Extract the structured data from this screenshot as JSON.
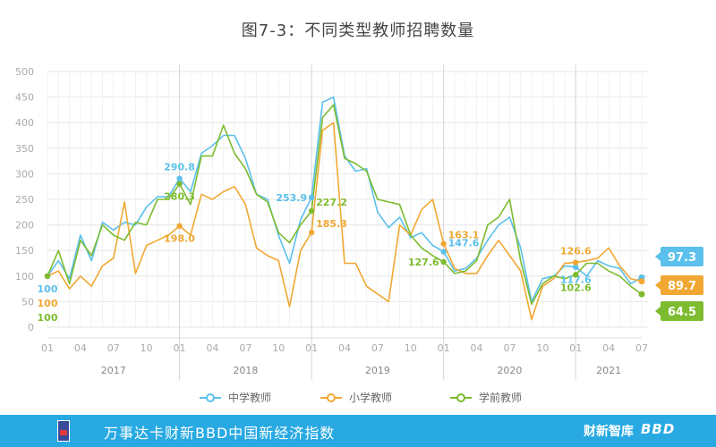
{
  "title": "图7-3：不同类型教师招聘数量",
  "footer": {
    "text": "万事达卡财新BBD中国新经济指数",
    "brand1": "财新智库",
    "brand2": "BBD"
  },
  "colors": {
    "primary": "#5bc0eb",
    "elementary": "#f0a833",
    "preschool": "#7dbb2f",
    "grid": "#e6e6e6",
    "axis_text": "#aaaaaa",
    "footer_bg": "#28a9e2"
  },
  "chart_data": {
    "type": "line",
    "title": "图7-3：不同类型教师招聘数量",
    "ylim": [
      0,
      500
    ],
    "yticks": [
      0,
      50,
      100,
      150,
      200,
      250,
      300,
      350,
      400,
      450,
      500
    ],
    "xticks": [
      {
        "i": 0,
        "label": "01"
      },
      {
        "i": 3,
        "label": "04"
      },
      {
        "i": 6,
        "label": "07"
      },
      {
        "i": 9,
        "label": "10"
      },
      {
        "i": 12,
        "label": "01"
      },
      {
        "i": 15,
        "label": "04"
      },
      {
        "i": 18,
        "label": "07"
      },
      {
        "i": 21,
        "label": "10"
      },
      {
        "i": 24,
        "label": "01"
      },
      {
        "i": 27,
        "label": "04"
      },
      {
        "i": 30,
        "label": "07"
      },
      {
        "i": 33,
        "label": "10"
      },
      {
        "i": 36,
        "label": "01"
      },
      {
        "i": 39,
        "label": "04"
      },
      {
        "i": 42,
        "label": "07"
      },
      {
        "i": 45,
        "label": "10"
      },
      {
        "i": 48,
        "label": "01"
      },
      {
        "i": 51,
        "label": "04"
      },
      {
        "i": 54,
        "label": "07"
      }
    ],
    "years": [
      {
        "label": "2017",
        "center": 6
      },
      {
        "label": "2018",
        "center": 18
      },
      {
        "label": "2019",
        "center": 30
      },
      {
        "label": "2020",
        "center": 42
      },
      {
        "label": "2021",
        "center": 51
      }
    ],
    "year_dividers": [
      12,
      24,
      36,
      48
    ],
    "grid": true,
    "legend_position": "bottom",
    "series": [
      {
        "name": "中学教师",
        "color": "#5bc0eb",
        "values": [
          100,
          130,
          95,
          180,
          130,
          205,
          190,
          205,
          200,
          235,
          255,
          255,
          290.8,
          265,
          340,
          355,
          375,
          375,
          330,
          260,
          250,
          180,
          125,
          210,
          253.9,
          440,
          450,
          335,
          305,
          310,
          225,
          195,
          215,
          175,
          185,
          160,
          147.6,
          110,
          115,
          135,
          170,
          200,
          215,
          155,
          50,
          95,
          100,
          120,
          117.6,
          100,
          130,
          120,
          115,
          85,
          97.3
        ],
        "labels": [
          {
            "i": 0,
            "text": "100",
            "pos": "below"
          },
          {
            "i": 12,
            "text": "290.8",
            "pos": "above"
          },
          {
            "i": 24,
            "text": "253.9",
            "pos": "left"
          },
          {
            "i": 36,
            "text": "147.6",
            "pos": "right"
          },
          {
            "i": 48,
            "text": "117.6",
            "pos": "below"
          }
        ]
      },
      {
        "name": "小学教师",
        "color": "#f0a833",
        "values": [
          100,
          110,
          75,
          100,
          80,
          120,
          135,
          245,
          105,
          160,
          170,
          180,
          198,
          180,
          260,
          250,
          265,
          275,
          240,
          155,
          140,
          130,
          40,
          150,
          185.3,
          385,
          400,
          125,
          125,
          80,
          65,
          50,
          200,
          180,
          230,
          250,
          163.1,
          115,
          105,
          105,
          140,
          170,
          140,
          110,
          15,
          80,
          95,
          125,
          126.6,
          130,
          135,
          155,
          120,
          95,
          89.7
        ],
        "labels": [
          {
            "i": 0,
            "text": "100",
            "pos": "below2"
          },
          {
            "i": 12,
            "text": "198.0",
            "pos": "below"
          },
          {
            "i": 24,
            "text": "185.3",
            "pos": "right"
          },
          {
            "i": 36,
            "text": "163.1",
            "pos": "right"
          },
          {
            "i": 48,
            "text": "126.6",
            "pos": "above"
          }
        ]
      },
      {
        "name": "学前教师",
        "color": "#7dbb2f",
        "values": [
          100,
          150,
          85,
          170,
          140,
          200,
          180,
          170,
          205,
          200,
          250,
          250,
          280.3,
          240,
          335,
          335,
          395,
          340,
          310,
          260,
          245,
          185,
          165,
          200,
          227.2,
          410,
          435,
          330,
          320,
          305,
          250,
          245,
          240,
          180,
          155,
          140,
          127.6,
          105,
          110,
          130,
          200,
          215,
          250,
          130,
          45,
          85,
          100,
          95,
          102.6,
          125,
          125,
          110,
          100,
          80,
          64.5
        ],
        "labels": [
          {
            "i": 0,
            "text": "100",
            "pos": "below3"
          },
          {
            "i": 12,
            "text": "280.3",
            "pos": "below"
          },
          {
            "i": 24,
            "text": "227.2",
            "pos": "right"
          },
          {
            "i": 36,
            "text": "127.6",
            "pos": "left"
          },
          {
            "i": 48,
            "text": "102.6",
            "pos": "below"
          }
        ]
      }
    ],
    "end_labels": [
      {
        "series": 0,
        "text": "97.3"
      },
      {
        "series": 1,
        "text": "89.7"
      },
      {
        "series": 2,
        "text": "64.5"
      }
    ]
  }
}
